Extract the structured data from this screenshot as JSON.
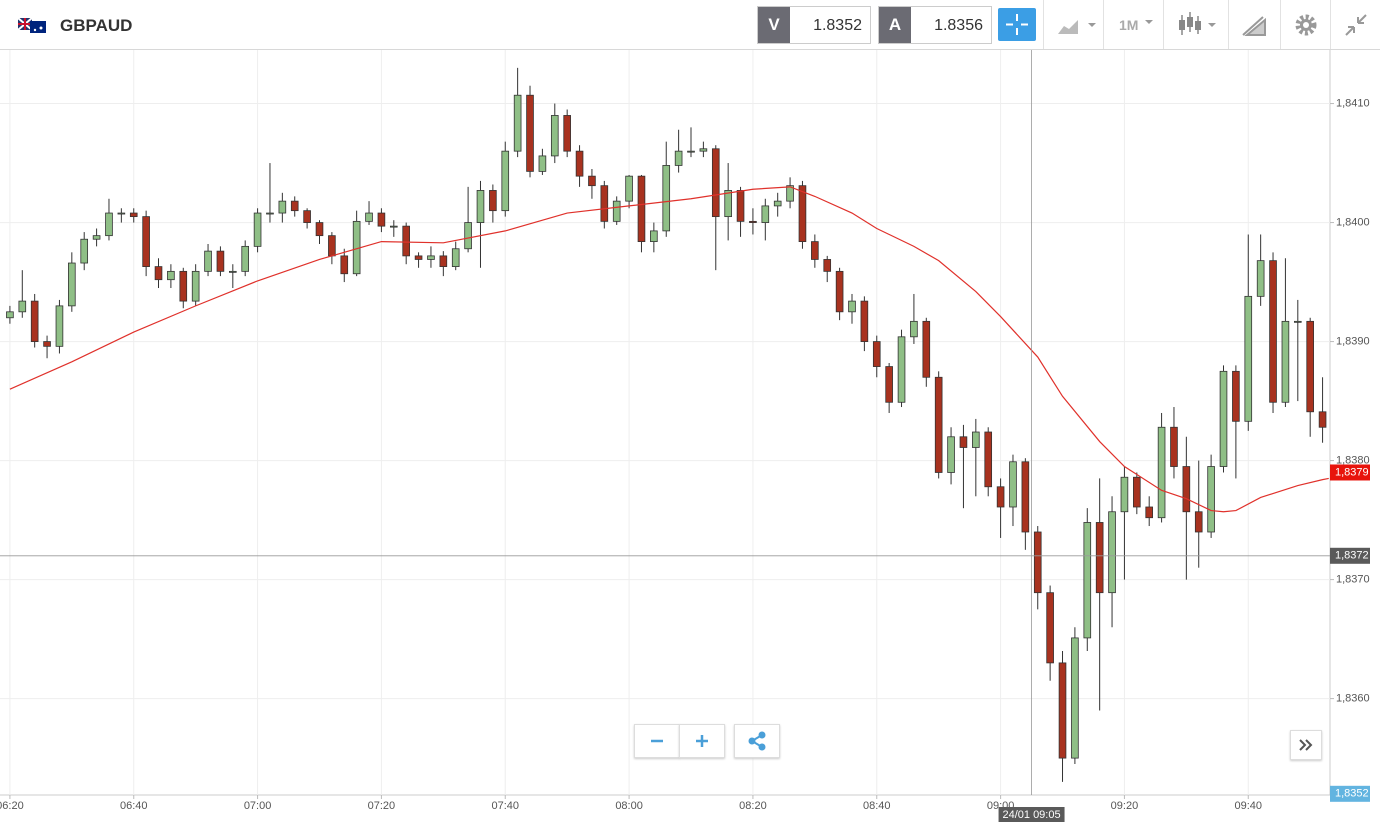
{
  "header": {
    "symbol": "GBPAUD",
    "bid_label": "V",
    "bid": 1.8352,
    "ask_label": "A",
    "ask": 1.8356,
    "timeframe": "1M"
  },
  "chart_data": {
    "type": "candlestick",
    "x": [
      380,
      382,
      384,
      386,
      388,
      390,
      392,
      394,
      396,
      398,
      400,
      402,
      404,
      406,
      408,
      410,
      412,
      414,
      416,
      418,
      420,
      422,
      424,
      426,
      428,
      430,
      432,
      434,
      436,
      438,
      440,
      442,
      444,
      446,
      448,
      450,
      452,
      454,
      456,
      458,
      460,
      462,
      464,
      466,
      468,
      470,
      472,
      474,
      476,
      478,
      480,
      482,
      484,
      486,
      488,
      490,
      492,
      494,
      496,
      498,
      500,
      502,
      504,
      506,
      508,
      510,
      512,
      514,
      516,
      518,
      520,
      522,
      524,
      526,
      528,
      530,
      532,
      534,
      536,
      538,
      540,
      542,
      544,
      546,
      548,
      550,
      552,
      554,
      556,
      558,
      560,
      562,
      564,
      566,
      568,
      570,
      572,
      574,
      576,
      578,
      580,
      582,
      584,
      586,
      588,
      590,
      592
    ],
    "ohlc": [
      [
        1.8392,
        1.8393,
        1.83915,
        1.83925
      ],
      [
        1.83925,
        1.8396,
        1.8392,
        1.83934
      ],
      [
        1.83934,
        1.8394,
        1.83895,
        1.839
      ],
      [
        1.839,
        1.83905,
        1.83886,
        1.83896
      ],
      [
        1.83896,
        1.83935,
        1.8389,
        1.8393
      ],
      [
        1.8393,
        1.83975,
        1.83925,
        1.83966
      ],
      [
        1.83966,
        1.83992,
        1.8396,
        1.83986
      ],
      [
        1.83986,
        1.83995,
        1.8398,
        1.83989
      ],
      [
        1.83989,
        1.8402,
        1.83985,
        1.84008
      ],
      [
        1.84008,
        1.84012,
        1.84,
        1.84008
      ],
      [
        1.84008,
        1.84012,
        1.84,
        1.84005
      ],
      [
        1.84005,
        1.8401,
        1.83955,
        1.83963
      ],
      [
        1.83963,
        1.8397,
        1.83945,
        1.83952
      ],
      [
        1.83952,
        1.83965,
        1.83945,
        1.83959
      ],
      [
        1.83959,
        1.83962,
        1.83928,
        1.83934
      ],
      [
        1.83934,
        1.83965,
        1.8393,
        1.83959
      ],
      [
        1.83959,
        1.83982,
        1.83955,
        1.83976
      ],
      [
        1.83976,
        1.8398,
        1.83955,
        1.83959
      ],
      [
        1.83959,
        1.83965,
        1.83945,
        1.83959
      ],
      [
        1.83959,
        1.83985,
        1.83955,
        1.8398
      ],
      [
        1.8398,
        1.84012,
        1.83975,
        1.84008
      ],
      [
        1.84008,
        1.8405,
        1.84,
        1.84008
      ],
      [
        1.84008,
        1.84025,
        1.84,
        1.84018
      ],
      [
        1.84018,
        1.84022,
        1.84005,
        1.8401
      ],
      [
        1.8401,
        1.84012,
        1.83995,
        1.84
      ],
      [
        1.84,
        1.84002,
        1.83982,
        1.83989
      ],
      [
        1.83989,
        1.83992,
        1.83965,
        1.83972
      ],
      [
        1.83972,
        1.83978,
        1.8395,
        1.83957
      ],
      [
        1.83957,
        1.8401,
        1.83955,
        1.84001
      ],
      [
        1.84001,
        1.84018,
        1.83998,
        1.84008
      ],
      [
        1.84008,
        1.84012,
        1.83992,
        1.83997
      ],
      [
        1.83997,
        1.84002,
        1.83988,
        1.83997
      ],
      [
        1.83997,
        1.84,
        1.83965,
        1.83972
      ],
      [
        1.83972,
        1.83975,
        1.83962,
        1.83969
      ],
      [
        1.83969,
        1.8398,
        1.83962,
        1.83972
      ],
      [
        1.83972,
        1.83976,
        1.83955,
        1.83963
      ],
      [
        1.83963,
        1.83984,
        1.8396,
        1.83978
      ],
      [
        1.83978,
        1.8403,
        1.83975,
        1.84
      ],
      [
        1.84,
        1.84035,
        1.83962,
        1.84027
      ],
      [
        1.84027,
        1.84032,
        1.84,
        1.8401
      ],
      [
        1.8401,
        1.84068,
        1.84005,
        1.8406
      ],
      [
        1.8406,
        1.8413,
        1.84055,
        1.84107
      ],
      [
        1.84107,
        1.84115,
        1.84038,
        1.84043
      ],
      [
        1.84043,
        1.84062,
        1.8404,
        1.84056
      ],
      [
        1.84056,
        1.841,
        1.8405,
        1.8409
      ],
      [
        1.8409,
        1.84095,
        1.84055,
        1.8406
      ],
      [
        1.8406,
        1.84065,
        1.8403,
        1.84039
      ],
      [
        1.84039,
        1.84045,
        1.8402,
        1.84031
      ],
      [
        1.84031,
        1.84035,
        1.83995,
        1.84001
      ],
      [
        1.84001,
        1.84022,
        1.83998,
        1.84018
      ],
      [
        1.84018,
        1.8404,
        1.84012,
        1.84039
      ],
      [
        1.84039,
        1.8404,
        1.83975,
        1.83984
      ],
      [
        1.83984,
        1.84,
        1.83975,
        1.83993
      ],
      [
        1.83993,
        1.84068,
        1.83988,
        1.84048
      ],
      [
        1.84048,
        1.84078,
        1.84042,
        1.8406
      ],
      [
        1.8406,
        1.8408,
        1.84055,
        1.8406
      ],
      [
        1.8406,
        1.84068,
        1.84055,
        1.84062
      ],
      [
        1.84062,
        1.84065,
        1.8396,
        1.84005
      ],
      [
        1.84005,
        1.8405,
        1.83985,
        1.84027
      ],
      [
        1.84027,
        1.8403,
        1.83988,
        1.84001
      ],
      [
        1.84001,
        1.84012,
        1.8399,
        1.84
      ],
      [
        1.84,
        1.8402,
        1.83985,
        1.84014
      ],
      [
        1.84014,
        1.84025,
        1.84005,
        1.84018
      ],
      [
        1.84018,
        1.84038,
        1.84012,
        1.84031
      ],
      [
        1.84031,
        1.84035,
        1.83978,
        1.83984
      ],
      [
        1.83984,
        1.8399,
        1.83962,
        1.83969
      ],
      [
        1.83969,
        1.83972,
        1.8395,
        1.83959
      ],
      [
        1.83959,
        1.83962,
        1.83918,
        1.83925
      ],
      [
        1.83925,
        1.8394,
        1.83915,
        1.83934
      ],
      [
        1.83934,
        1.83938,
        1.83892,
        1.839
      ],
      [
        1.839,
        1.83905,
        1.8387,
        1.83879
      ],
      [
        1.83879,
        1.83882,
        1.8384,
        1.83849
      ],
      [
        1.83849,
        1.8391,
        1.83845,
        1.83904
      ],
      [
        1.83904,
        1.8394,
        1.83898,
        1.83917
      ],
      [
        1.83917,
        1.8392,
        1.83862,
        1.8387
      ],
      [
        1.8387,
        1.83875,
        1.83785,
        1.8379
      ],
      [
        1.8379,
        1.83828,
        1.8378,
        1.8382
      ],
      [
        1.8382,
        1.8383,
        1.8376,
        1.83811
      ],
      [
        1.83811,
        1.83835,
        1.8377,
        1.83824
      ],
      [
        1.83824,
        1.83828,
        1.8377,
        1.83778
      ],
      [
        1.83778,
        1.83785,
        1.83735,
        1.83761
      ],
      [
        1.83761,
        1.83805,
        1.83745,
        1.83799
      ],
      [
        1.83799,
        1.83802,
        1.83725,
        1.8374
      ],
      [
        1.8374,
        1.83745,
        1.83675,
        1.83689
      ],
      [
        1.83689,
        1.83695,
        1.83615,
        1.8363
      ],
      [
        1.8363,
        1.8364,
        1.8353,
        1.8355
      ],
      [
        1.8355,
        1.8366,
        1.83545,
        1.83651
      ],
      [
        1.83651,
        1.8376,
        1.8364,
        1.83748
      ],
      [
        1.83748,
        1.83785,
        1.8359,
        1.83689
      ],
      [
        1.83689,
        1.8377,
        1.8366,
        1.83757
      ],
      [
        1.83757,
        1.83795,
        1.837,
        1.83786
      ],
      [
        1.83786,
        1.8379,
        1.83755,
        1.83761
      ],
      [
        1.83761,
        1.8377,
        1.83745,
        1.83752
      ],
      [
        1.83752,
        1.8384,
        1.83748,
        1.83828
      ],
      [
        1.83828,
        1.83845,
        1.83785,
        1.83795
      ],
      [
        1.83795,
        1.8382,
        1.837,
        1.83757
      ],
      [
        1.83757,
        1.838,
        1.8371,
        1.8374
      ],
      [
        1.8374,
        1.83805,
        1.83735,
        1.83795
      ],
      [
        1.83795,
        1.8388,
        1.8379,
        1.83875
      ],
      [
        1.83875,
        1.8388,
        1.83785,
        1.83833
      ],
      [
        1.83833,
        1.8399,
        1.83825,
        1.83938
      ],
      [
        1.83938,
        1.8399,
        1.8393,
        1.83968
      ],
      [
        1.83968,
        1.83975,
        1.8384,
        1.83849
      ],
      [
        1.83849,
        1.8397,
        1.83845,
        1.83917
      ],
      [
        1.83917,
        1.83935,
        1.8385,
        1.83917
      ],
      [
        1.83917,
        1.8392,
        1.8382,
        1.83841
      ],
      [
        1.83841,
        1.8387,
        1.83815,
        1.83828
      ]
    ],
    "up_color": "#8fbf86",
    "down_color": "#a8321f",
    "ma": {
      "color": "#e0312b",
      "x": [
        380,
        390,
        400,
        410,
        420,
        430,
        440,
        450,
        460,
        470,
        480,
        490,
        500,
        506,
        510,
        516,
        520,
        526,
        530,
        536,
        540,
        546,
        550,
        556,
        560,
        566,
        570,
        574,
        576,
        578,
        582,
        588,
        592,
        593
      ],
      "values": [
        1.8386,
        1.83883,
        1.83908,
        1.8393,
        1.83951,
        1.83969,
        1.83984,
        1.83983,
        1.83993,
        1.84008,
        1.84014,
        1.8402,
        1.84028,
        1.8403,
        1.84022,
        1.84008,
        1.83995,
        1.8398,
        1.83968,
        1.83942,
        1.83921,
        1.83887,
        1.83854,
        1.83816,
        1.83795,
        1.83775,
        1.83768,
        1.83758,
        1.83757,
        1.83758,
        1.83769,
        1.83779,
        1.83784,
        1.83785
      ]
    },
    "xlim": [
      378.4,
      593.2
    ],
    "ylim": [
      1.83519,
      1.84145
    ],
    "xticks": [
      {
        "value": 380,
        "label": "06:20"
      },
      {
        "value": 400,
        "label": "06:40"
      },
      {
        "value": 420,
        "label": "07:00"
      },
      {
        "value": 440,
        "label": "07:20"
      },
      {
        "value": 460,
        "label": "07:40"
      },
      {
        "value": 480,
        "label": "08:00"
      },
      {
        "value": 500,
        "label": "08:20"
      },
      {
        "value": 520,
        "label": "08:40"
      },
      {
        "value": 540,
        "label": "09:00"
      },
      {
        "value": 560,
        "label": "09:20"
      },
      {
        "value": 580,
        "label": "09:40"
      }
    ],
    "yticks": [
      {
        "value": 1.836,
        "label": "1,8360"
      },
      {
        "value": 1.837,
        "label": "1,8370"
      },
      {
        "value": 1.838,
        "label": "1,8380"
      },
      {
        "value": 1.839,
        "label": "1,8390"
      },
      {
        "value": 1.84,
        "label": "1,8400"
      },
      {
        "value": 1.841,
        "label": "1,8410"
      }
    ],
    "grid": true,
    "markers": [
      {
        "value": 1.8379,
        "label": "1,8379",
        "color": "#e8140c"
      },
      {
        "value": 1.8352,
        "label": "1,8352",
        "color": "#62b4e0"
      }
    ],
    "crosshair": {
      "x": 545,
      "x_label": "24/01 09:05",
      "y": 1.8372,
      "y_label": "1,8372",
      "color": "#5a5a5a"
    }
  }
}
